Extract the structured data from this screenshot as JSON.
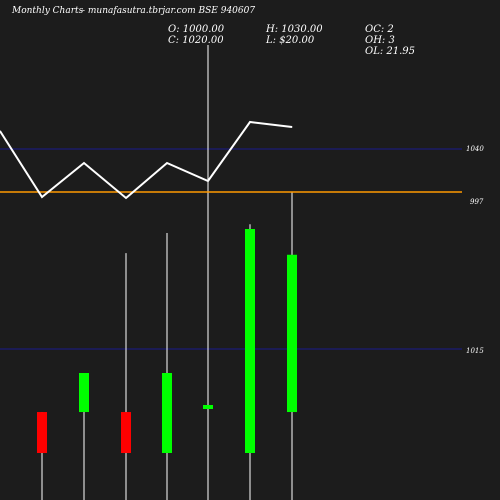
{
  "header": {
    "brand": "Monthly Charts",
    "site": "- munafasutra.tbrjar.com  BSE 940607",
    "open": "O: 1000.00",
    "close": "C: 1020.00",
    "high": "H: 1030.00",
    "low": "L: $20.00",
    "oc": "OC: 2",
    "oh": "OH: 3",
    "ol": "OL: 21.95"
  },
  "colors": {
    "background": "#1c1c1c",
    "bull": "#00ff00",
    "bear": "#ff0000",
    "line": "#ffffff",
    "reference_line": "#ff9900",
    "gridline": "#1a1a8c",
    "wick": "#ffffff"
  },
  "chart_data": {
    "type": "candlestick",
    "title": "",
    "upper_panel": {
      "type": "line",
      "y_ticks": [
        "1040",
        "997"
      ],
      "y_tick_values": [
        1040,
        997
      ],
      "reference_level": 997,
      "values": [
        1058,
        992,
        1026,
        991,
        1026,
        1008,
        1067,
        1062
      ]
    },
    "lower_panel": {
      "type": "candlestick",
      "y_ticks": [
        "1015"
      ],
      "y_tick_values": [
        1015
      ],
      "candles": [
        {
          "open": 975.6,
          "close": 950,
          "high": 975.6,
          "low": 950,
          "color": "bear"
        },
        {
          "open": 975.6,
          "close": 1000,
          "high": 1000,
          "low": 950,
          "color": "bull"
        },
        {
          "open": 975.6,
          "close": 950,
          "high": 1074.9,
          "low": 950,
          "color": "bear"
        },
        {
          "open": 950,
          "close": 1000,
          "high": 1087.5,
          "low": 950,
          "color": "bull"
        },
        {
          "open": 978,
          "close": 980,
          "high": 1170,
          "low": 950,
          "color": "bull"
        },
        {
          "open": 950,
          "close": 1090,
          "high": 1093,
          "low": 950,
          "color": "bull"
        },
        {
          "open": 975.6,
          "close": 1073.9,
          "high": 1113,
          "low": 950,
          "color": "bull"
        }
      ]
    }
  }
}
